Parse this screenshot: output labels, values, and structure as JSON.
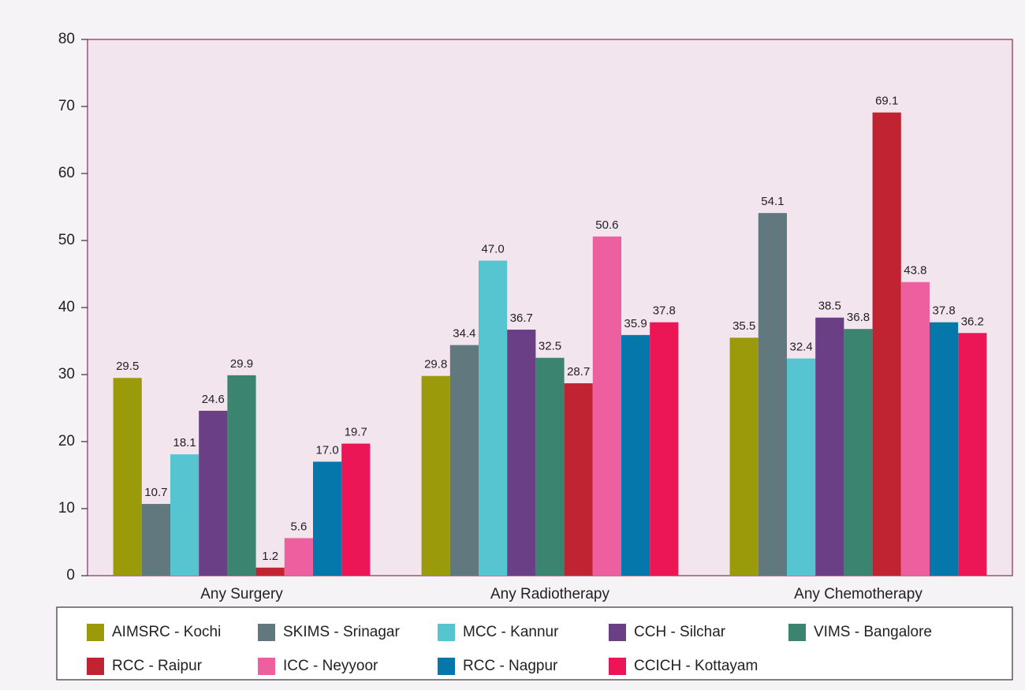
{
  "chart_data": {
    "type": "bar",
    "categories": [
      "Any Surgery",
      "Any Radiotherapy",
      "Any Chemotherapy"
    ],
    "series": [
      {
        "name": "AIMSRC - Kochi",
        "color": "#9a9a0a",
        "values": [
          29.5,
          29.8,
          35.5
        ],
        "value_labels": [
          "29.5",
          "29.8",
          "35.5"
        ]
      },
      {
        "name": "SKIMS - Srinagar",
        "color": "#62787f",
        "values": [
          10.7,
          34.4,
          54.1
        ],
        "value_labels": [
          "10.7",
          "34.4",
          "54.1"
        ]
      },
      {
        "name": "MCC - Kannur",
        "color": "#56c5d0",
        "values": [
          18.1,
          47.0,
          32.4
        ],
        "value_labels": [
          "18.1",
          "47.0",
          "32.4"
        ]
      },
      {
        "name": "CCH - Silchar",
        "color": "#6a3f86",
        "values": [
          24.6,
          36.7,
          38.5
        ],
        "value_labels": [
          "24.6",
          "36.7",
          "38.5"
        ]
      },
      {
        "name": "VIMS - Bangalore",
        "color": "#3a8470",
        "values": [
          29.9,
          32.5,
          36.8
        ],
        "value_labels": [
          "29.9",
          "32.5",
          "36.8"
        ]
      },
      {
        "name": "RCC - Raipur",
        "color": "#c02432",
        "values": [
          1.2,
          28.7,
          69.1
        ],
        "value_labels": [
          "1.2",
          "28.7",
          "69.1"
        ]
      },
      {
        "name": "ICC - Neyyoor",
        "color": "#ee5fa0",
        "values": [
          5.6,
          50.6,
          43.8
        ],
        "value_labels": [
          "5.6",
          "50.6",
          "43.8"
        ]
      },
      {
        "name": "RCC - Nagpur",
        "color": "#0577ab",
        "values": [
          17.0,
          35.9,
          37.8
        ],
        "value_labels": [
          "17.0",
          "35.9",
          "37.8"
        ]
      },
      {
        "name": "CCICH - Kottayam",
        "color": "#ec1656",
        "values": [
          19.7,
          37.8,
          36.2
        ],
        "value_labels": [
          "19.7",
          "37.8",
          "36.2"
        ]
      }
    ],
    "ylim": [
      0,
      80
    ],
    "yticks": [
      0,
      10,
      20,
      30,
      40,
      50,
      60,
      70,
      80
    ],
    "grid": false
  }
}
